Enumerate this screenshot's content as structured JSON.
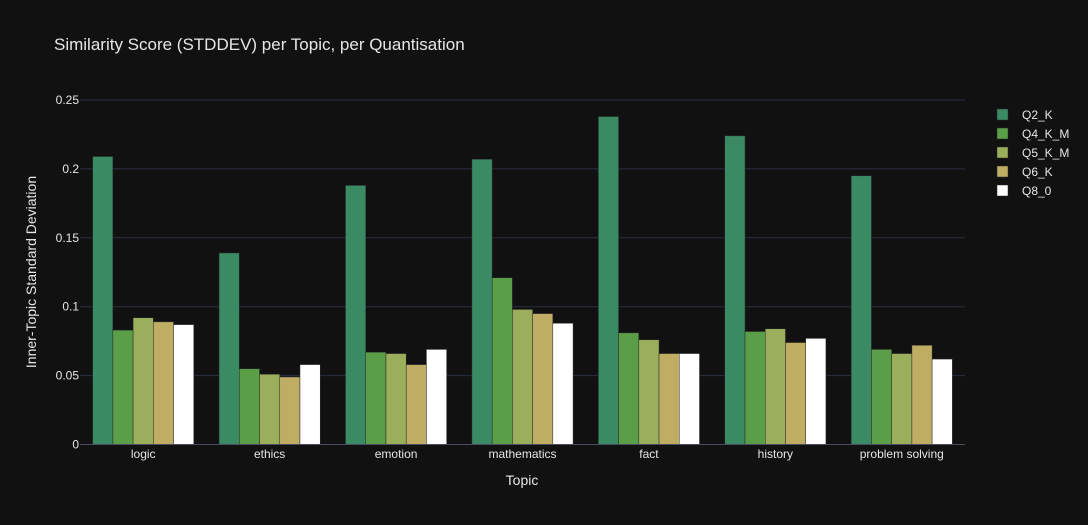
{
  "chart_data": {
    "type": "bar",
    "title": "Similarity Score (STDDEV) per Topic, per Quantisation",
    "xlabel": "Topic",
    "ylabel": "Inner-Topic Standard Deviation",
    "ylim": [
      0,
      0.25
    ],
    "yticks": [
      0,
      0.05,
      0.1,
      0.15,
      0.2,
      0.25
    ],
    "ytick_labels": [
      "0",
      "0.05",
      "0.1",
      "0.15",
      "0.2",
      "0.25"
    ],
    "grid": true,
    "legend_position": "top-right",
    "categories": [
      "logic",
      "ethics",
      "emotion",
      "mathematics",
      "fact",
      "history",
      "problem solving"
    ],
    "series": [
      {
        "name": "Q2_K",
        "color": "#3a8b64",
        "values": [
          0.209,
          0.139,
          0.188,
          0.207,
          0.238,
          0.224,
          0.195
        ]
      },
      {
        "name": "Q4_K_M",
        "color": "#5a9e48",
        "values": [
          0.083,
          0.055,
          0.067,
          0.121,
          0.081,
          0.082,
          0.069
        ]
      },
      {
        "name": "Q5_K_M",
        "color": "#9bae5c",
        "values": [
          0.092,
          0.051,
          0.066,
          0.098,
          0.076,
          0.084,
          0.066
        ]
      },
      {
        "name": "Q6_K",
        "color": "#bfad64",
        "values": [
          0.089,
          0.049,
          0.058,
          0.095,
          0.066,
          0.074,
          0.072
        ]
      },
      {
        "name": "Q8_0",
        "color": "#ffffff",
        "values": [
          0.087,
          0.058,
          0.069,
          0.088,
          0.066,
          0.077,
          0.062
        ]
      }
    ]
  }
}
